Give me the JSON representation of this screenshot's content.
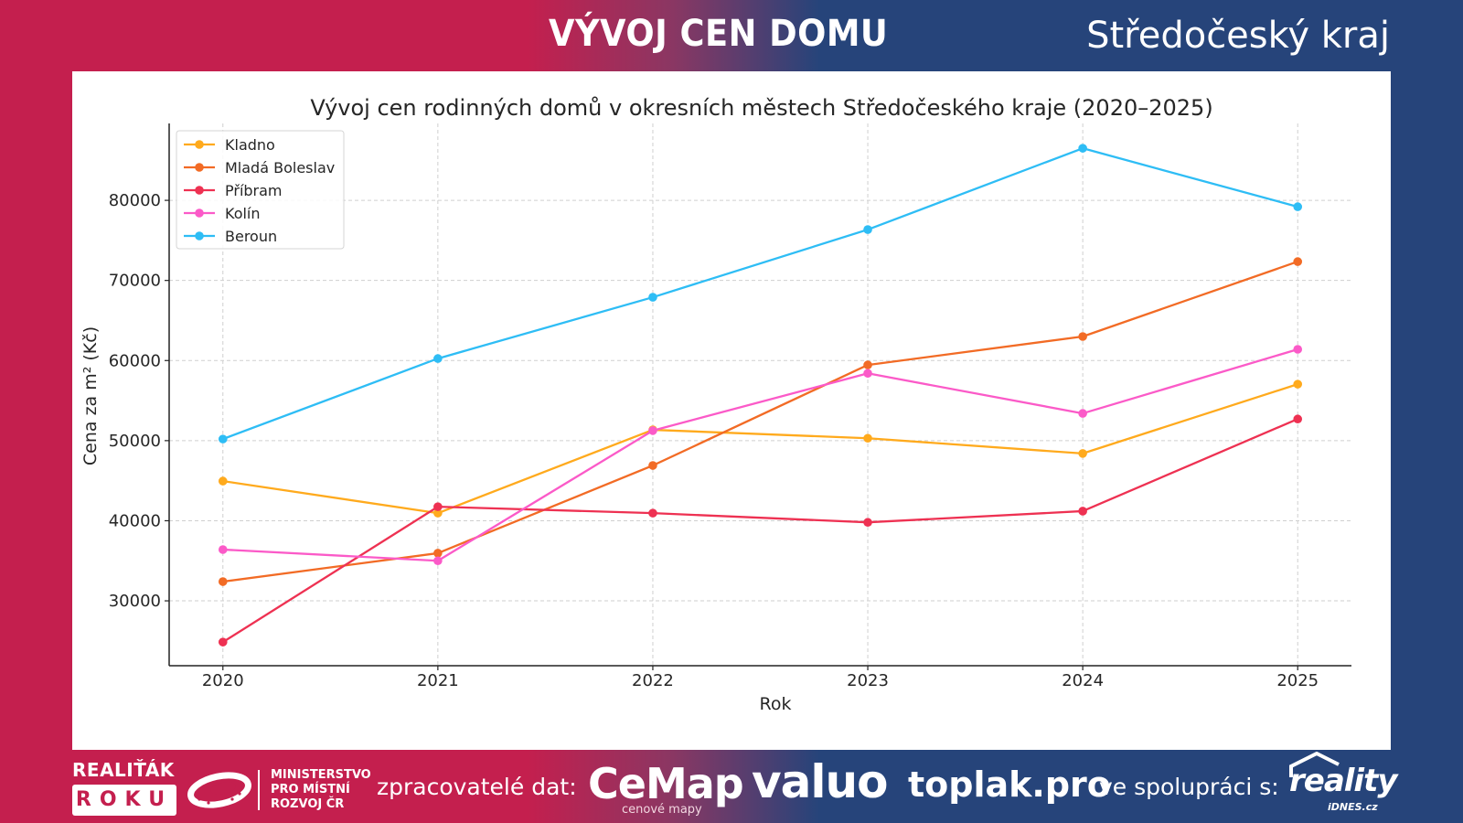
{
  "header": {
    "title": "VÝVOJ CEN DOMU",
    "region": "Středočeský kraj"
  },
  "colors": {
    "crimson": "#C41F4E",
    "navy": "#26447A"
  },
  "chart_data": {
    "type": "line",
    "title": "Vývoj cen rodinných domů v okresních městech Středočeského kraje (2020–2025)",
    "xlabel": "Rok",
    "ylabel": "Cena za m² (Kč)",
    "x": [
      2020,
      2021,
      2022,
      2023,
      2024,
      2025
    ],
    "x_tick_labels": [
      "2020",
      "2021",
      "2022",
      "2023",
      "2024",
      "2025"
    ],
    "y_ticks": [
      30000,
      40000,
      50000,
      60000,
      70000,
      80000
    ],
    "y_tick_labels": [
      "30000",
      "40000",
      "50000",
      "60000",
      "70000",
      "80000"
    ],
    "xlim": [
      2019.75,
      2025.25
    ],
    "ylim": [
      21900,
      89600
    ],
    "grid": true,
    "legend_position": "top-left",
    "series": [
      {
        "name": "Kladno",
        "color": "#FFAA1D",
        "values": [
          44950,
          40950,
          51350,
          50300,
          48400,
          57050
        ]
      },
      {
        "name": "Mladá Boleslav",
        "color": "#F26B25",
        "values": [
          32400,
          35950,
          46900,
          59450,
          63000,
          72350
        ]
      },
      {
        "name": "Příbram",
        "color": "#EE3152",
        "values": [
          24850,
          41750,
          40950,
          39800,
          41200,
          52700
        ]
      },
      {
        "name": "Kolín",
        "color": "#FB5AC8",
        "values": [
          36400,
          35000,
          51250,
          58400,
          53400,
          61400
        ]
      },
      {
        "name": "Beroun",
        "color": "#2EBDF5",
        "values": [
          50200,
          60250,
          67900,
          76350,
          86500,
          79200
        ]
      }
    ]
  },
  "footer": {
    "realitak_top": "REALIŤÁK",
    "realitak_box": "ROKU",
    "mmr_lines": [
      "MINISTERSTVO",
      "PRO MÍSTNÍ",
      "ROZVOJ ČR"
    ],
    "processors_label": "zpracovatelé dat:",
    "cemap": "CeMap",
    "cemap_sub": "cenové mapy",
    "valuo": "valuo",
    "toplak": "toplak.pro",
    "cooperation_label": "ve spolupráci s:",
    "reality": "reality",
    "reality_sub": "iDNES.cz"
  }
}
